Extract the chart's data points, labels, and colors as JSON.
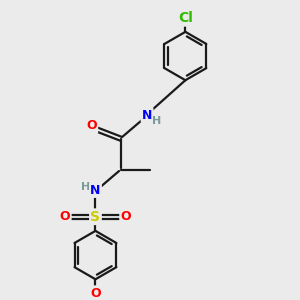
{
  "bg_color": "#ebebeb",
  "bond_color": "#1a1a1a",
  "line_width": 1.6,
  "colors": {
    "O": "#ff0000",
    "N": "#0000ff",
    "S": "#cccc00",
    "Cl": "#33bb00",
    "C": "#1a1a1a",
    "H": "#7a9a9a"
  },
  "font_size": 9
}
